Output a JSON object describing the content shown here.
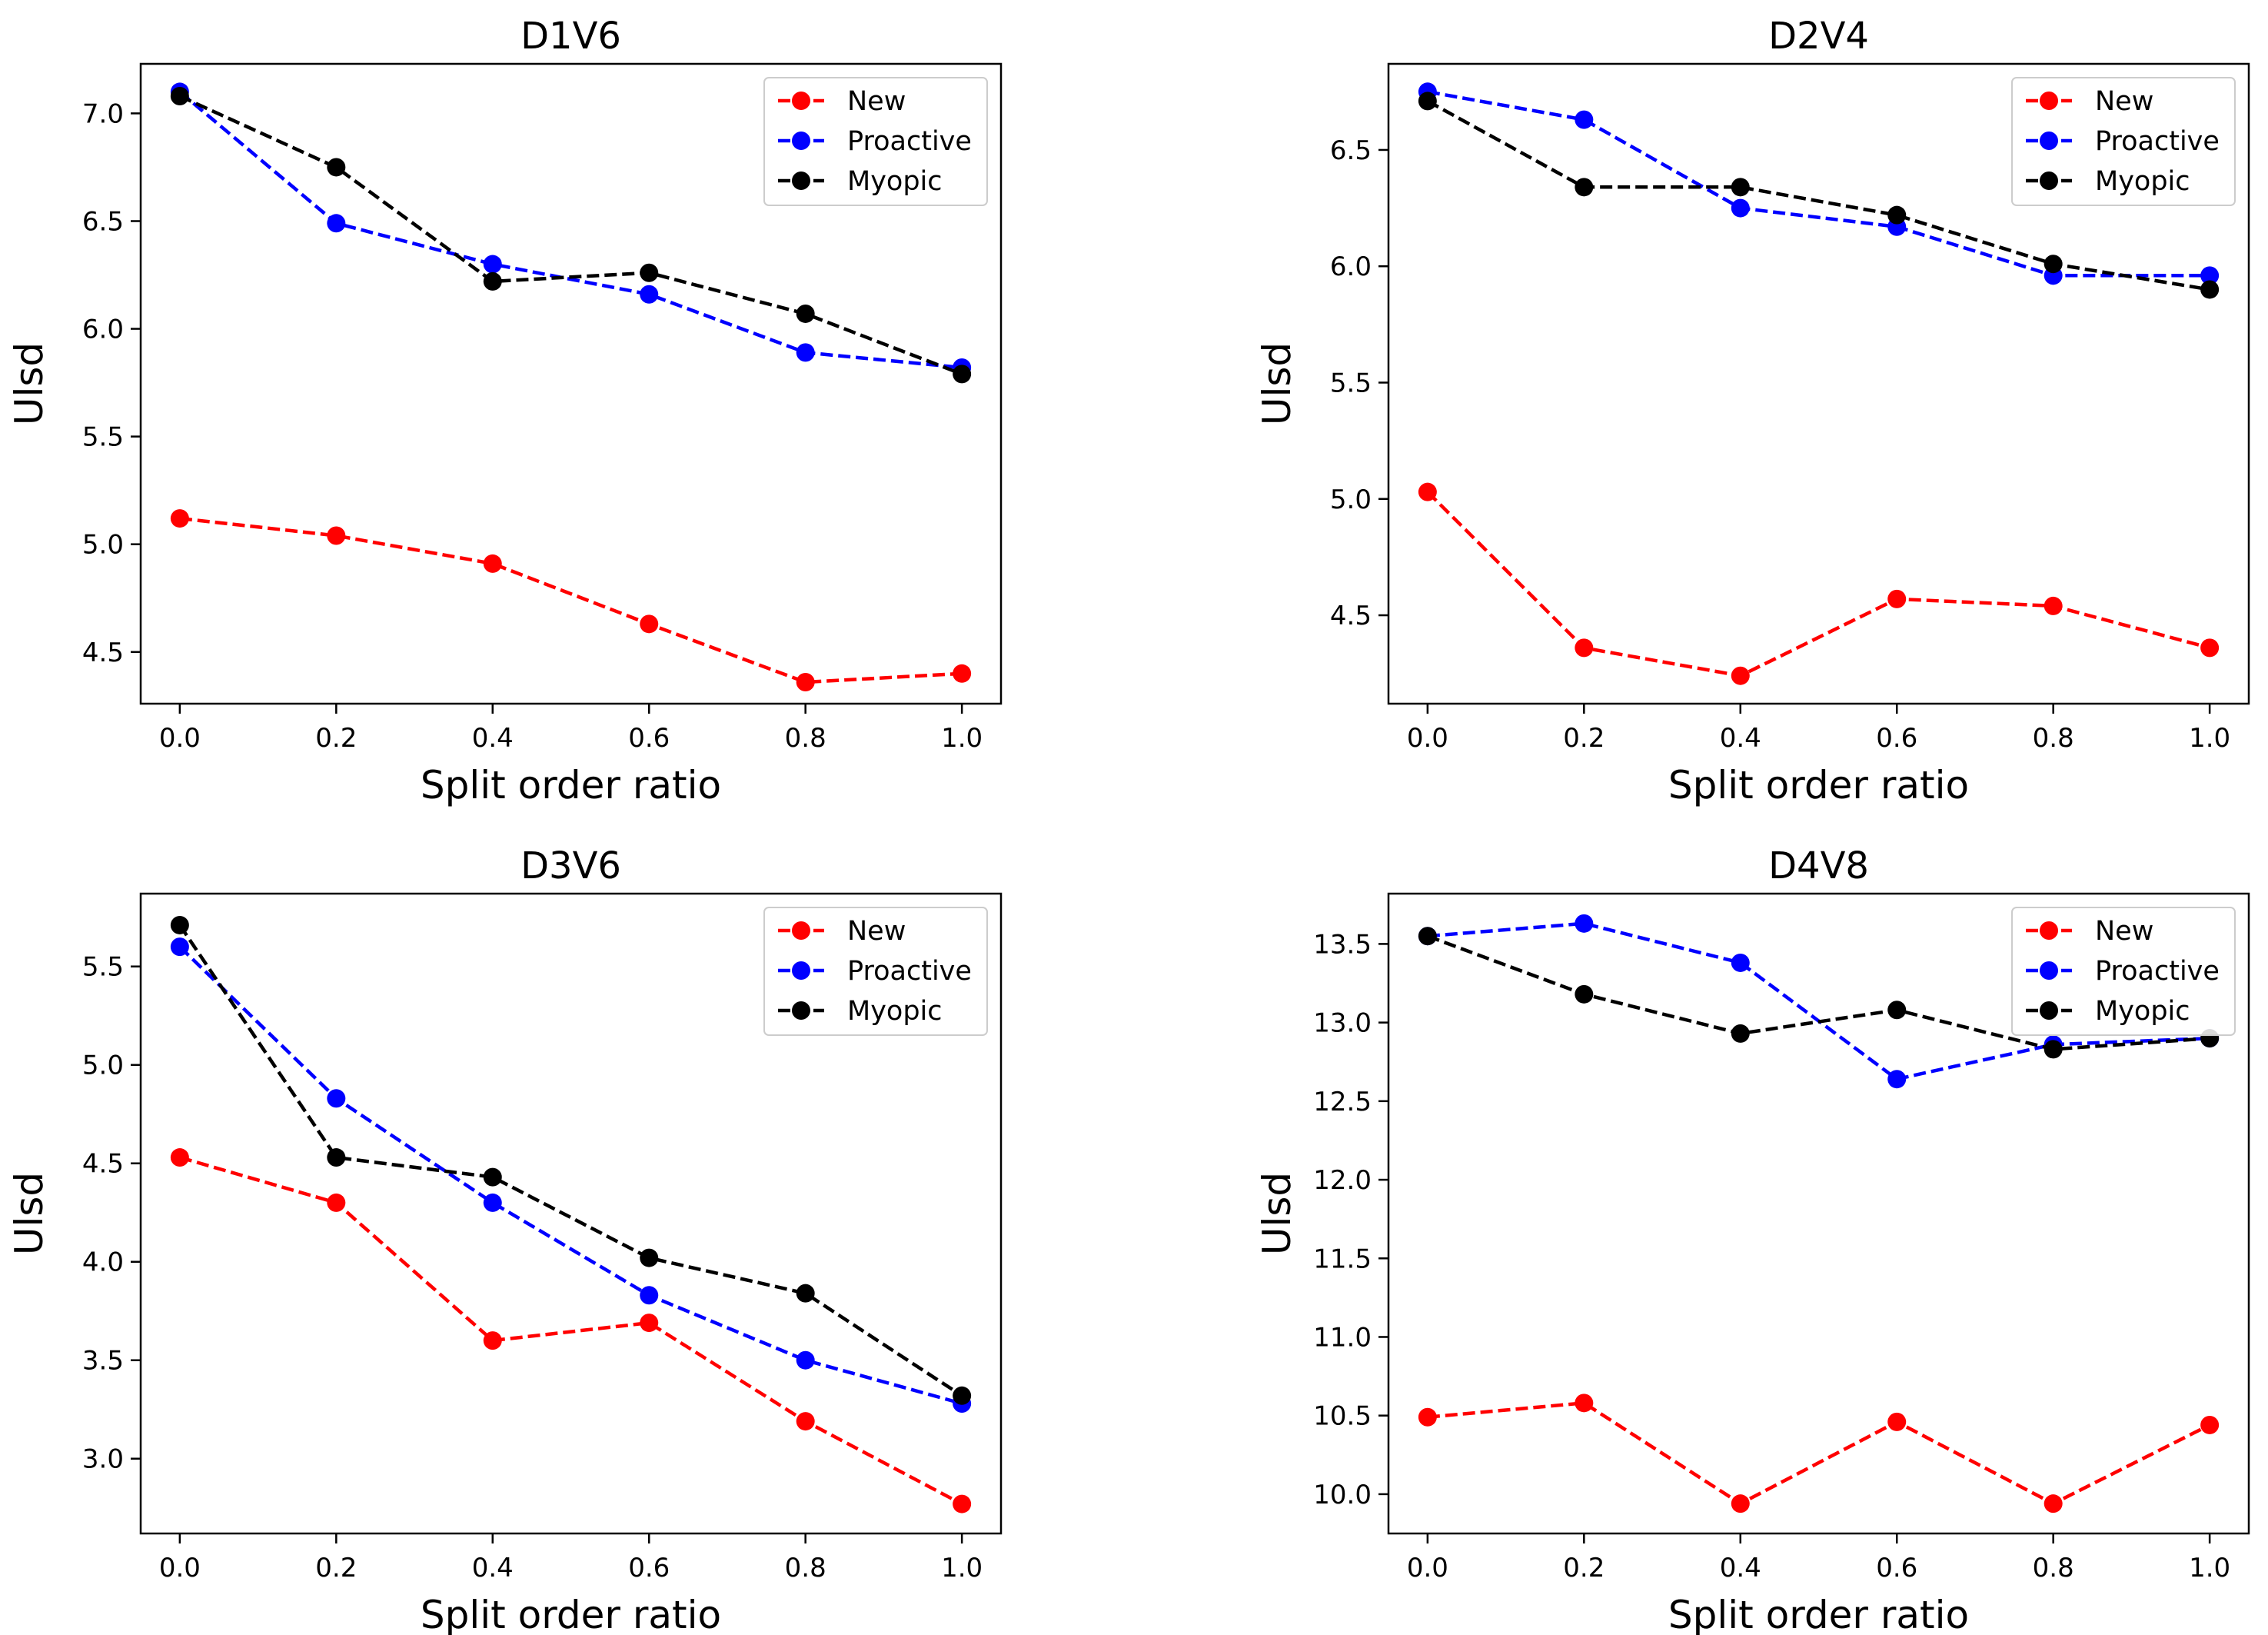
{
  "chart_data": [
    {
      "type": "line",
      "title": "D1V6",
      "xlabel": "Split order ratio",
      "ylabel": "Ulsd",
      "x": [
        0.0,
        0.2,
        0.4,
        0.6,
        0.8,
        1.0
      ],
      "xlim": [
        -0.05,
        1.05
      ],
      "ylim": [
        4.26,
        7.23
      ],
      "xticks": [
        "0.0",
        "0.2",
        "0.4",
        "0.6",
        "0.8",
        "1.0"
      ],
      "yticks": [
        "4.5",
        "5.0",
        "5.5",
        "6.0",
        "6.5",
        "7.0"
      ],
      "legend": "top-right",
      "grid": false,
      "series": [
        {
          "name": "New",
          "color": "#ff0000",
          "values": [
            5.12,
            5.04,
            4.91,
            4.63,
            4.36,
            4.4
          ]
        },
        {
          "name": "Proactive",
          "color": "#0000ff",
          "values": [
            7.1,
            6.49,
            6.3,
            6.16,
            5.89,
            5.82
          ]
        },
        {
          "name": "Myopic",
          "color": "#000000",
          "values": [
            7.08,
            6.75,
            6.22,
            6.26,
            6.07,
            5.79
          ]
        }
      ]
    },
    {
      "type": "line",
      "title": "D2V4",
      "xlabel": "Split order ratio",
      "ylabel": "Ulsd",
      "x": [
        0.0,
        0.2,
        0.4,
        0.6,
        0.8,
        1.0
      ],
      "xlim": [
        -0.05,
        1.05
      ],
      "ylim": [
        4.12,
        6.87
      ],
      "xticks": [
        "0.0",
        "0.2",
        "0.4",
        "0.6",
        "0.8",
        "1.0"
      ],
      "yticks": [
        "4.5",
        "5.0",
        "5.5",
        "6.0",
        "6.5"
      ],
      "legend": "top-right",
      "grid": false,
      "series": [
        {
          "name": "New",
          "color": "#ff0000",
          "values": [
            5.03,
            4.36,
            4.24,
            4.57,
            4.54,
            4.36
          ]
        },
        {
          "name": "Proactive",
          "color": "#0000ff",
          "values": [
            6.75,
            6.63,
            6.25,
            6.17,
            5.96,
            5.96
          ]
        },
        {
          "name": "Myopic",
          "color": "#000000",
          "values": [
            6.71,
            6.34,
            6.34,
            6.22,
            6.01,
            5.9
          ]
        }
      ]
    },
    {
      "type": "line",
      "title": "D3V6",
      "xlabel": "Split order ratio",
      "ylabel": "Ulsd",
      "x": [
        0.0,
        0.2,
        0.4,
        0.6,
        0.8,
        1.0
      ],
      "xlim": [
        -0.05,
        1.05
      ],
      "ylim": [
        2.62,
        5.87
      ],
      "xticks": [
        "0.0",
        "0.2",
        "0.4",
        "0.6",
        "0.8",
        "1.0"
      ],
      "yticks": [
        "3.0",
        "3.5",
        "4.0",
        "4.5",
        "5.0",
        "5.5"
      ],
      "legend": "top-right",
      "grid": false,
      "series": [
        {
          "name": "New",
          "color": "#ff0000",
          "values": [
            4.53,
            4.3,
            3.6,
            3.69,
            3.19,
            2.77
          ]
        },
        {
          "name": "Proactive",
          "color": "#0000ff",
          "values": [
            5.6,
            4.83,
            4.3,
            3.83,
            3.5,
            3.28
          ]
        },
        {
          "name": "Myopic",
          "color": "#000000",
          "values": [
            5.71,
            4.53,
            4.43,
            4.02,
            3.84,
            3.32
          ]
        }
      ]
    },
    {
      "type": "line",
      "title": "D4V8",
      "xlabel": "Split order ratio",
      "ylabel": "Ulsd",
      "x": [
        0.0,
        0.2,
        0.4,
        0.6,
        0.8,
        1.0
      ],
      "xlim": [
        -0.05,
        1.05
      ],
      "ylim": [
        9.75,
        13.82
      ],
      "xticks": [
        "0.0",
        "0.2",
        "0.4",
        "0.6",
        "0.8",
        "1.0"
      ],
      "yticks": [
        "10.0",
        "10.5",
        "11.0",
        "11.5",
        "12.0",
        "12.5",
        "13.0",
        "13.5"
      ],
      "legend": "top-right",
      "grid": false,
      "series": [
        {
          "name": "New",
          "color": "#ff0000",
          "values": [
            10.49,
            10.58,
            9.94,
            10.46,
            9.94,
            10.44
          ]
        },
        {
          "name": "Proactive",
          "color": "#0000ff",
          "values": [
            13.55,
            13.63,
            13.38,
            12.64,
            12.86,
            12.9
          ]
        },
        {
          "name": "Myopic",
          "color": "#000000",
          "values": [
            13.55,
            13.18,
            12.93,
            13.08,
            12.83,
            12.9
          ]
        }
      ]
    }
  ]
}
